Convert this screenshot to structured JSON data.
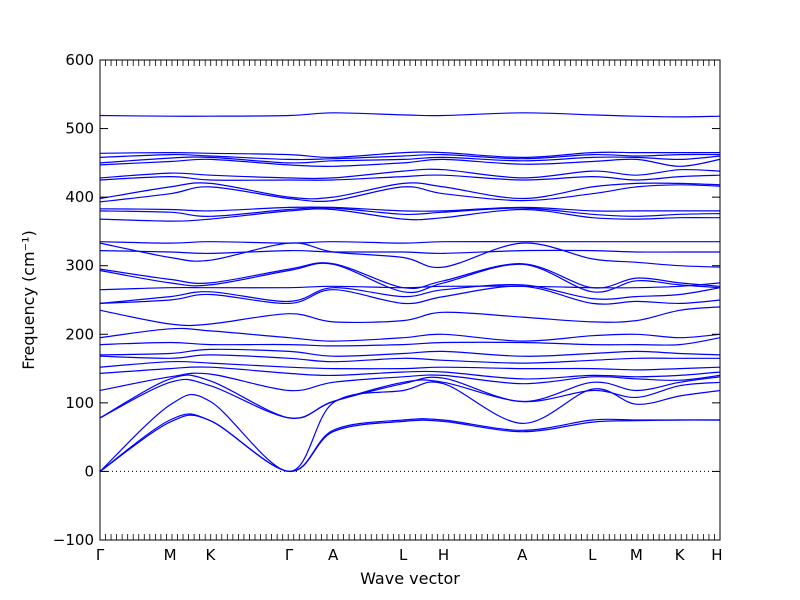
{
  "chart_data": {
    "type": "line",
    "xlabel": "Wave vector",
    "ylabel": "Frequency (cm⁻¹)",
    "ylim": [
      -100,
      600
    ],
    "yticks": [
      -100,
      0,
      100,
      200,
      300,
      400,
      500,
      600
    ],
    "xlim": [
      0,
      1
    ],
    "high_symmetry_points": [
      {
        "label": "Γ",
        "x": 0.0
      },
      {
        "label": "M",
        "x": 0.113
      },
      {
        "label": "K",
        "x": 0.178
      },
      {
        "label": "Γ",
        "x": 0.305
      },
      {
        "label": "A",
        "x": 0.376
      },
      {
        "label": "L",
        "x": 0.489
      },
      {
        "label": "H",
        "x": 0.554
      },
      {
        "label": "A",
        "x": 0.681
      },
      {
        "label": "L",
        "x": 0.794
      },
      {
        "label": "M",
        "x": 0.865
      },
      {
        "label": "K",
        "x": 0.935
      },
      {
        "label": "H",
        "x": 0.995
      }
    ],
    "zero_line": {
      "y": 0,
      "style": "dotted"
    },
    "line_color": "#0000ff",
    "series": [
      {
        "x": [
          0,
          0.113,
          0.178,
          0.305,
          0.376,
          0.489,
          0.554,
          0.681,
          0.794,
          0.865,
          0.935,
          1
        ],
        "y": [
          0,
          72,
          74,
          0,
          58,
          73,
          73,
          58,
          72,
          74,
          75,
          75
        ]
      },
      {
        "x": [
          0,
          0.113,
          0.178,
          0.305,
          0.376,
          0.489,
          0.554,
          0.681,
          0.794,
          0.865,
          0.935,
          1
        ],
        "y": [
          0,
          75,
          74,
          0,
          60,
          75,
          75,
          60,
          75,
          75,
          75,
          75
        ]
      },
      {
        "x": [
          0,
          0.113,
          0.178,
          0.305,
          0.376,
          0.489,
          0.554,
          0.681,
          0.794,
          0.865,
          0.935,
          1
        ],
        "y": [
          0,
          97,
          102,
          0,
          100,
          118,
          128,
          70,
          120,
          98,
          110,
          118
        ]
      },
      {
        "x": [
          0,
          0.113,
          0.178,
          0.305,
          0.376,
          0.489,
          0.554,
          0.681,
          0.794,
          0.865,
          0.935,
          1
        ],
        "y": [
          78,
          130,
          125,
          78,
          102,
          130,
          130,
          102,
          118,
          108,
          125,
          130
        ]
      },
      {
        "x": [
          0,
          0.113,
          0.178,
          0.305,
          0.376,
          0.489,
          0.554,
          0.681,
          0.794,
          0.865,
          0.935,
          1
        ],
        "y": [
          78,
          135,
          132,
          78,
          102,
          128,
          136,
          102,
          130,
          118,
          130,
          138
        ]
      },
      {
        "x": [
          0,
          0.113,
          0.178,
          0.305,
          0.376,
          0.489,
          0.554,
          0.681,
          0.794,
          0.865,
          0.935,
          1
        ],
        "y": [
          118,
          138,
          142,
          118,
          130,
          138,
          140,
          128,
          138,
          135,
          133,
          140
        ]
      },
      {
        "x": [
          0,
          0.113,
          0.178,
          0.305,
          0.376,
          0.489,
          0.554,
          0.681,
          0.794,
          0.865,
          0.935,
          1
        ],
        "y": [
          143,
          150,
          152,
          143,
          140,
          145,
          145,
          135,
          140,
          138,
          140,
          145
        ]
      },
      {
        "x": [
          0,
          0.113,
          0.178,
          0.305,
          0.376,
          0.489,
          0.554,
          0.681,
          0.794,
          0.865,
          0.935,
          1
        ],
        "y": [
          152,
          160,
          158,
          152,
          150,
          150,
          152,
          150,
          150,
          148,
          150,
          152
        ]
      },
      {
        "x": [
          0,
          0.113,
          0.178,
          0.305,
          0.376,
          0.489,
          0.554,
          0.681,
          0.794,
          0.865,
          0.935,
          1
        ],
        "y": [
          168,
          165,
          170,
          165,
          160,
          165,
          162,
          158,
          162,
          165,
          165,
          165
        ]
      },
      {
        "x": [
          0,
          0.113,
          0.178,
          0.305,
          0.376,
          0.489,
          0.554,
          0.681,
          0.794,
          0.865,
          0.935,
          1
        ],
        "y": [
          170,
          172,
          178,
          175,
          168,
          172,
          175,
          168,
          172,
          175,
          172,
          170
        ]
      },
      {
        "x": [
          0,
          0.113,
          0.178,
          0.305,
          0.376,
          0.489,
          0.554,
          0.681,
          0.794,
          0.865,
          0.935,
          1
        ],
        "y": [
          185,
          188,
          185,
          185,
          183,
          185,
          188,
          188,
          185,
          185,
          185,
          195
        ]
      },
      {
        "x": [
          0,
          0.113,
          0.178,
          0.305,
          0.376,
          0.489,
          0.554,
          0.681,
          0.794,
          0.865,
          0.935,
          1
        ],
        "y": [
          195,
          208,
          205,
          195,
          190,
          195,
          200,
          190,
          198,
          200,
          195,
          200
        ]
      },
      {
        "x": [
          0,
          0.113,
          0.178,
          0.305,
          0.376,
          0.489,
          0.554,
          0.681,
          0.794,
          0.865,
          0.935,
          1
        ],
        "y": [
          235,
          215,
          215,
          230,
          218,
          220,
          232,
          225,
          218,
          220,
          235,
          240
        ]
      },
      {
        "x": [
          0,
          0.113,
          0.178,
          0.305,
          0.376,
          0.489,
          0.554,
          0.681,
          0.794,
          0.865,
          0.935,
          1
        ],
        "y": [
          245,
          250,
          258,
          245,
          265,
          245,
          255,
          270,
          245,
          248,
          245,
          250
        ]
      },
      {
        "x": [
          0,
          0.113,
          0.178,
          0.305,
          0.376,
          0.489,
          0.554,
          0.681,
          0.794,
          0.865,
          0.935,
          1
        ],
        "y": [
          245,
          255,
          262,
          248,
          268,
          255,
          265,
          272,
          252,
          255,
          258,
          268
        ]
      },
      {
        "x": [
          0,
          0.113,
          0.178,
          0.305,
          0.376,
          0.489,
          0.554,
          0.681,
          0.794,
          0.865,
          0.935,
          1
        ],
        "y": [
          265,
          268,
          268,
          268,
          270,
          268,
          270,
          270,
          268,
          268,
          270,
          275
        ]
      },
      {
        "x": [
          0,
          0.113,
          0.178,
          0.305,
          0.376,
          0.489,
          0.554,
          0.681,
          0.794,
          0.865,
          0.935,
          1
        ],
        "y": [
          293,
          275,
          272,
          293,
          302,
          262,
          275,
          302,
          262,
          278,
          272,
          268
        ]
      },
      {
        "x": [
          0,
          0.113,
          0.178,
          0.305,
          0.376,
          0.489,
          0.554,
          0.681,
          0.794,
          0.865,
          0.935,
          1
        ],
        "y": [
          295,
          280,
          275,
          295,
          303,
          268,
          278,
          303,
          268,
          282,
          275,
          270
        ]
      },
      {
        "x": [
          0,
          0.113,
          0.178,
          0.305,
          0.376,
          0.489,
          0.554,
          0.681,
          0.794,
          0.865,
          0.935,
          1
        ],
        "y": [
          322,
          320,
          318,
          322,
          320,
          320,
          318,
          322,
          322,
          320,
          320,
          320
        ]
      },
      {
        "x": [
          0,
          0.113,
          0.178,
          0.305,
          0.376,
          0.489,
          0.554,
          0.681,
          0.794,
          0.865,
          0.935,
          1
        ],
        "y": [
          333,
          312,
          308,
          333,
          320,
          312,
          298,
          333,
          310,
          305,
          300,
          298
        ]
      },
      {
        "x": [
          0,
          0.113,
          0.178,
          0.305,
          0.376,
          0.489,
          0.554,
          0.681,
          0.794,
          0.865,
          0.935,
          1
        ],
        "y": [
          335,
          333,
          335,
          333,
          335,
          333,
          335,
          335,
          335,
          335,
          335,
          335
        ]
      },
      {
        "x": [
          0,
          0.113,
          0.178,
          0.305,
          0.376,
          0.489,
          0.554,
          0.681,
          0.794,
          0.865,
          0.935,
          1
        ],
        "y": [
          368,
          365,
          368,
          380,
          382,
          368,
          370,
          382,
          370,
          368,
          370,
          370
        ]
      },
      {
        "x": [
          0,
          0.113,
          0.178,
          0.305,
          0.376,
          0.489,
          0.554,
          0.681,
          0.794,
          0.865,
          0.935,
          1
        ],
        "y": [
          380,
          378,
          372,
          382,
          384,
          375,
          378,
          384,
          375,
          372,
          375,
          376
        ]
      },
      {
        "x": [
          0,
          0.113,
          0.178,
          0.305,
          0.376,
          0.489,
          0.554,
          0.681,
          0.794,
          0.865,
          0.935,
          1
        ],
        "y": [
          383,
          382,
          380,
          385,
          385,
          380,
          380,
          385,
          380,
          380,
          380,
          380
        ]
      },
      {
        "x": [
          0,
          0.113,
          0.178,
          0.305,
          0.376,
          0.489,
          0.554,
          0.681,
          0.794,
          0.865,
          0.935,
          1
        ],
        "y": [
          393,
          405,
          415,
          398,
          395,
          415,
          405,
          395,
          405,
          415,
          418,
          416
        ]
      },
      {
        "x": [
          0,
          0.113,
          0.178,
          0.305,
          0.376,
          0.489,
          0.554,
          0.681,
          0.794,
          0.865,
          0.935,
          1
        ],
        "y": [
          398,
          415,
          420,
          400,
          400,
          420,
          415,
          398,
          415,
          420,
          420,
          418
        ]
      },
      {
        "x": [
          0,
          0.113,
          0.178,
          0.305,
          0.376,
          0.489,
          0.554,
          0.681,
          0.794,
          0.865,
          0.935,
          1
        ],
        "y": [
          425,
          430,
          425,
          425,
          425,
          430,
          432,
          425,
          430,
          425,
          430,
          432
        ]
      },
      {
        "x": [
          0,
          0.113,
          0.178,
          0.305,
          0.376,
          0.489,
          0.554,
          0.681,
          0.794,
          0.865,
          0.935,
          1
        ],
        "y": [
          428,
          435,
          432,
          428,
          428,
          438,
          440,
          428,
          438,
          432,
          440,
          438
        ]
      },
      {
        "x": [
          0,
          0.113,
          0.178,
          0.305,
          0.376,
          0.489,
          0.554,
          0.681,
          0.794,
          0.865,
          0.935,
          1
        ],
        "y": [
          447,
          452,
          455,
          447,
          445,
          450,
          455,
          448,
          452,
          455,
          445,
          455
        ]
      },
      {
        "x": [
          0,
          0.113,
          0.178,
          0.305,
          0.376,
          0.489,
          0.554,
          0.681,
          0.794,
          0.865,
          0.935,
          1
        ],
        "y": [
          450,
          457,
          458,
          450,
          453,
          455,
          458,
          453,
          458,
          458,
          455,
          460
        ]
      },
      {
        "x": [
          0,
          0.113,
          0.178,
          0.305,
          0.376,
          0.489,
          0.554,
          0.681,
          0.794,
          0.865,
          0.935,
          1
        ],
        "y": [
          458,
          462,
          460,
          455,
          456,
          460,
          462,
          456,
          462,
          460,
          462,
          462
        ]
      },
      {
        "x": [
          0,
          0.113,
          0.178,
          0.305,
          0.376,
          0.489,
          0.554,
          0.681,
          0.794,
          0.865,
          0.935,
          1
        ],
        "y": [
          464,
          465,
          464,
          462,
          458,
          465,
          465,
          458,
          465,
          465,
          465,
          465
        ]
      },
      {
        "x": [
          0,
          0.113,
          0.178,
          0.305,
          0.376,
          0.489,
          0.554,
          0.681,
          0.794,
          0.865,
          0.935,
          1
        ],
        "y": [
          519,
          518,
          518,
          519,
          523,
          520,
          519,
          523,
          520,
          518,
          517,
          518
        ]
      }
    ]
  }
}
